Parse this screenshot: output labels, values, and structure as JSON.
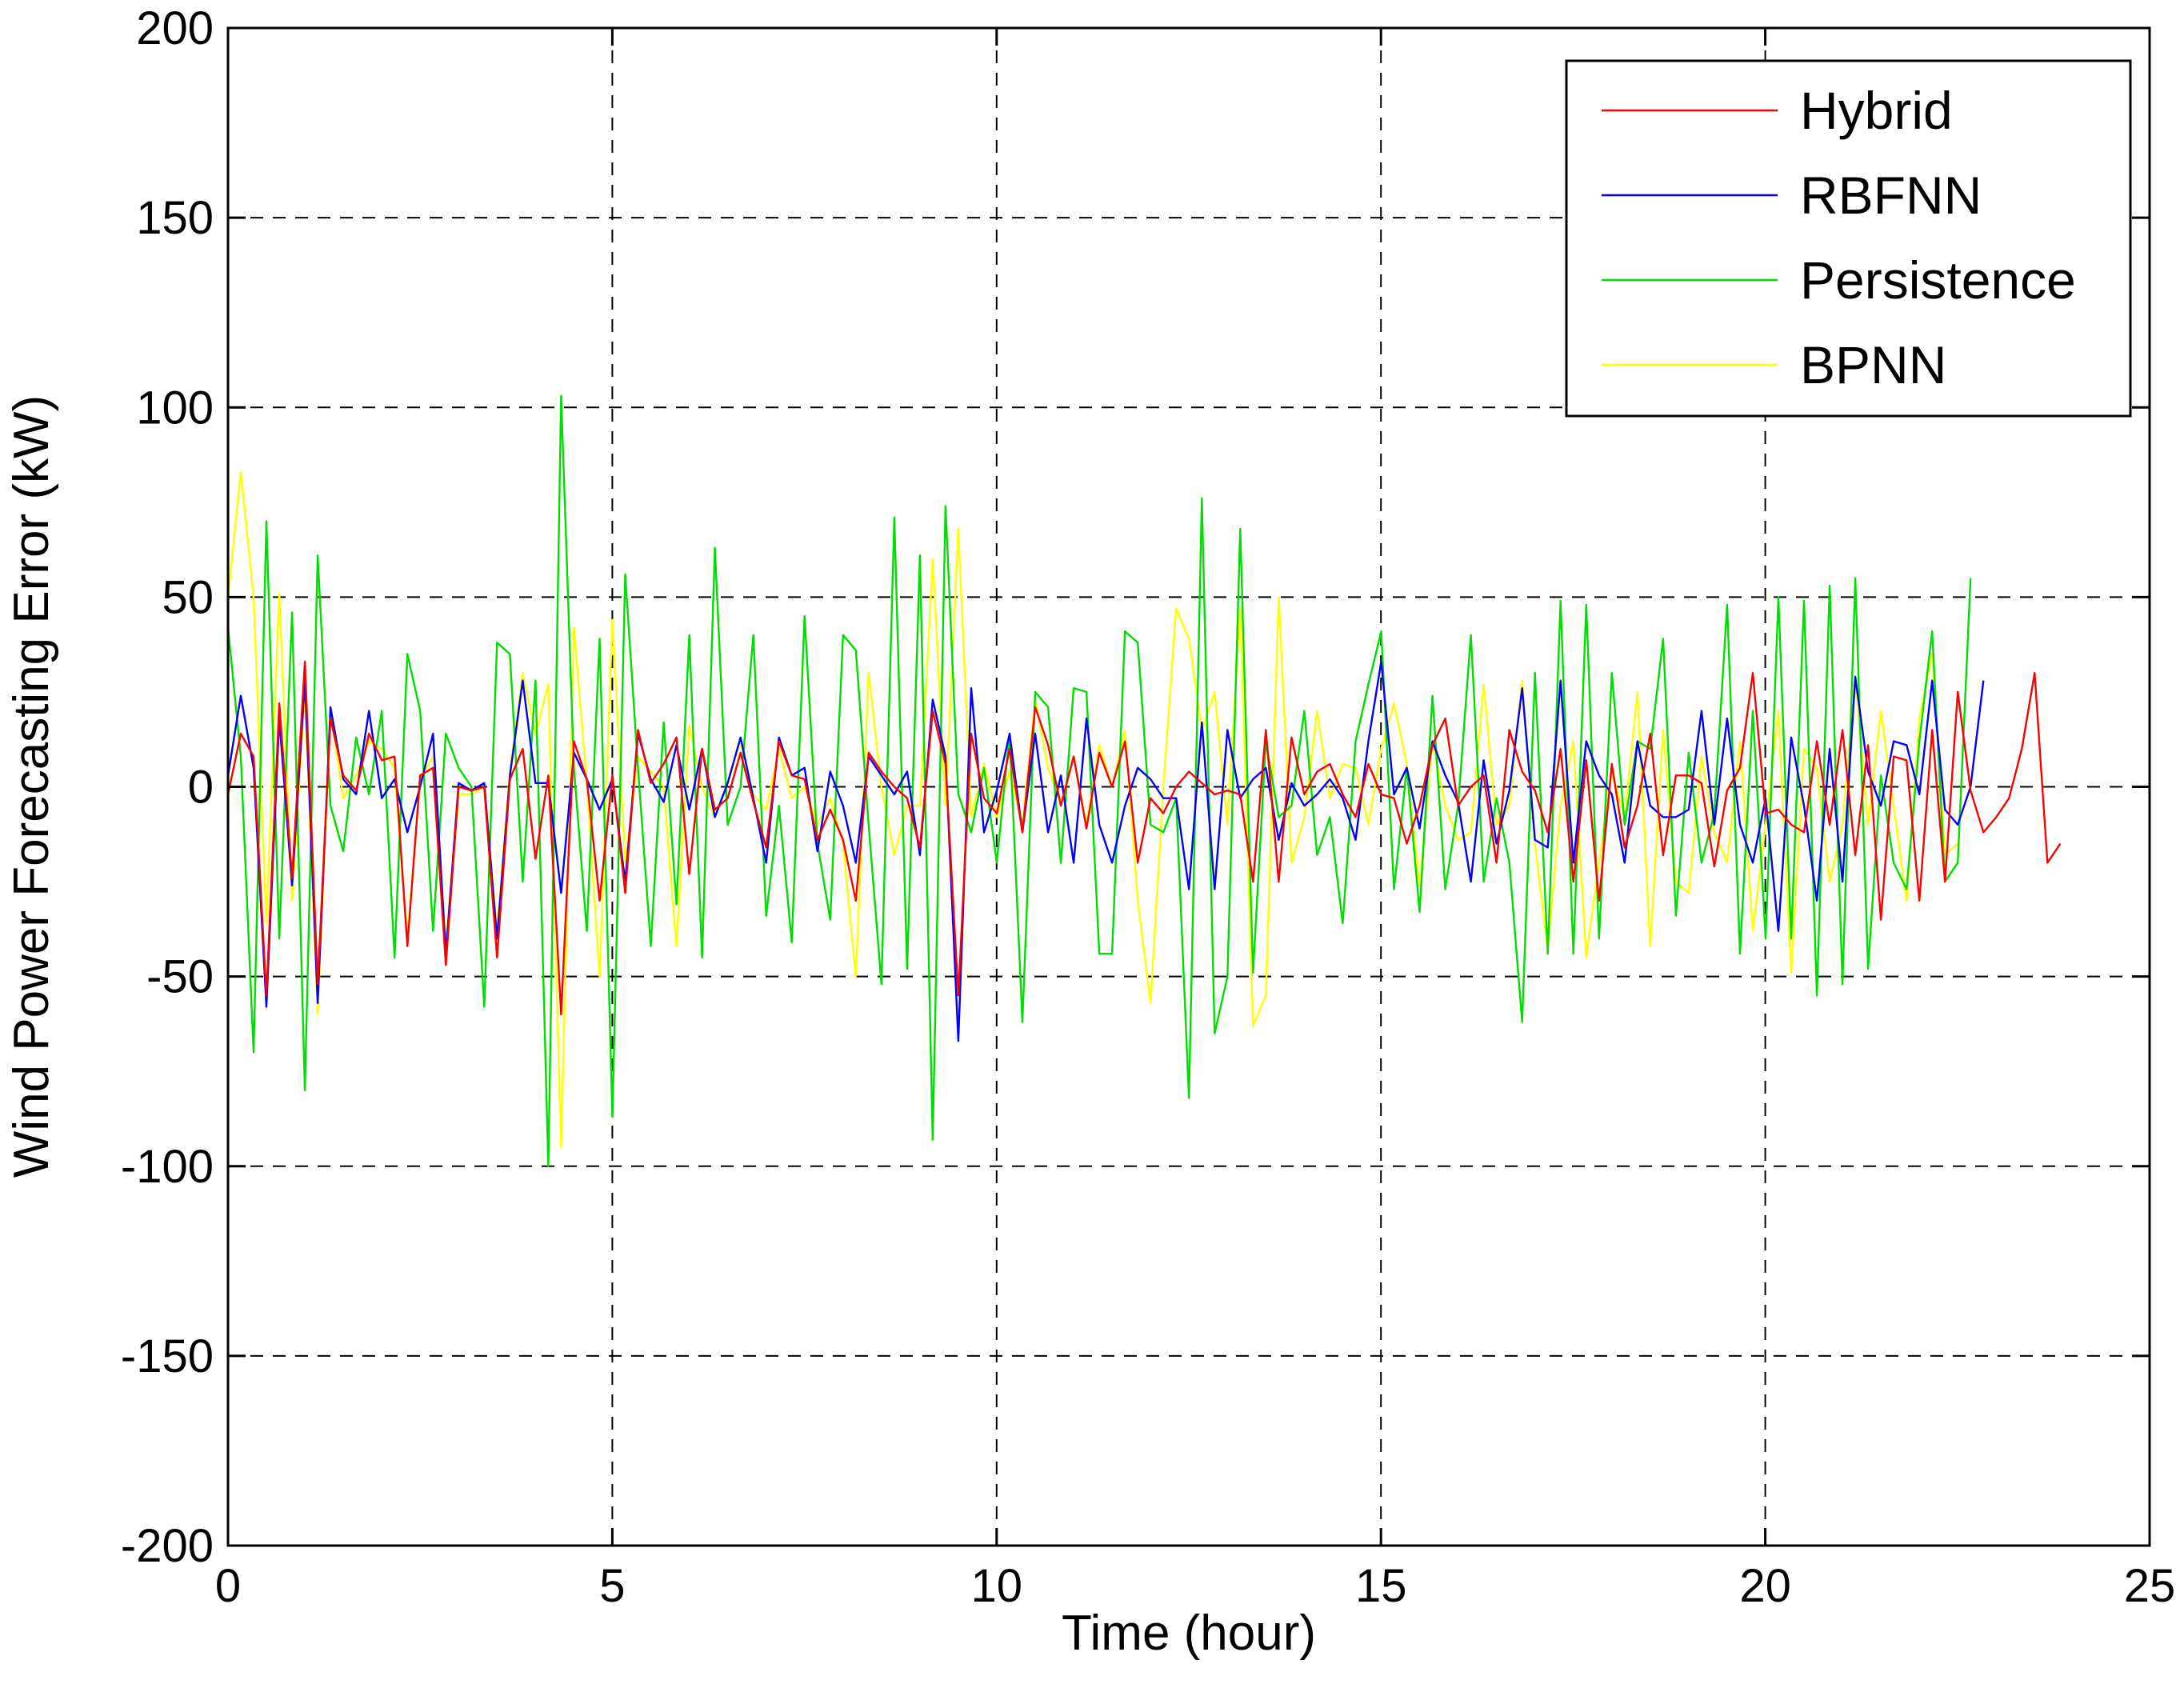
{
  "chart_data": {
    "type": "line",
    "xlabel": "Time (hour)",
    "ylabel": "Wind Power Forecasting Error (kW)",
    "xlim": [
      0,
      25
    ],
    "ylim": [
      -200,
      200
    ],
    "xticks": [
      "0",
      "5",
      "10",
      "15",
      "20",
      "25"
    ],
    "yticks": [
      "200",
      "150",
      "100",
      "50",
      "0",
      "-50",
      "-100",
      "-150",
      "-200"
    ],
    "grid": true,
    "legend_position": "top-right",
    "x_step_hours": 0.1667,
    "series": [
      {
        "name": "Hybrid",
        "color": "#ff0000",
        "values": [
          -2,
          14,
          8,
          -55,
          22,
          -24,
          33,
          -52,
          18,
          3,
          -1,
          14,
          7,
          8,
          -42,
          3,
          5,
          -47,
          0,
          -1,
          0,
          -45,
          2,
          10,
          -19,
          3,
          -60,
          12,
          2,
          -30,
          3,
          -28,
          15,
          1,
          6,
          13,
          -23,
          10,
          -6,
          -3,
          9,
          -4,
          -16,
          12,
          3,
          2,
          -14,
          -6,
          -14,
          -30,
          9,
          4,
          0,
          -3,
          -16,
          20,
          6,
          -55,
          14,
          -3,
          -7,
          10,
          -12,
          21,
          11,
          -5,
          8,
          -11,
          9,
          0,
          12,
          -20,
          -3,
          -7,
          0,
          4,
          1,
          -2,
          -1,
          -2,
          -25,
          15,
          -25,
          13,
          -2,
          4,
          6,
          -2,
          -8,
          6,
          -2,
          -3,
          -15,
          -5,
          11,
          18,
          -5,
          0,
          3,
          -20,
          15,
          4,
          -1,
          -12,
          10,
          -25,
          7,
          -30,
          6,
          -16,
          -5,
          14,
          -18,
          3,
          3,
          1,
          -21,
          -1,
          5,
          30,
          -7,
          -6,
          -10,
          -12,
          12,
          -10,
          15,
          -18,
          11,
          -35,
          8,
          7,
          -30,
          15,
          -25,
          25,
          -1,
          -12,
          -8,
          -3,
          10,
          30,
          -20,
          -15
        ]
      },
      {
        "name": "RBFNN",
        "color": "#0000ff",
        "values": [
          3,
          24,
          5,
          -58,
          18,
          -26,
          28,
          -57,
          21,
          2,
          -2,
          20,
          -3,
          2,
          -12,
          0,
          14,
          -44,
          1,
          -1,
          1,
          -40,
          3,
          28,
          1,
          1,
          -28,
          9,
          2,
          -6,
          2,
          -25,
          14,
          2,
          -4,
          11,
          -6,
          10,
          -8,
          1,
          13,
          -3,
          -20,
          13,
          3,
          5,
          -17,
          4,
          -5,
          -20,
          8,
          3,
          -2,
          4,
          -18,
          23,
          8,
          -67,
          26,
          -12,
          -1,
          14,
          -12,
          14,
          -12,
          3,
          -20,
          18,
          -10,
          -20,
          -5,
          5,
          2,
          -3,
          -3,
          -27,
          17,
          -27,
          15,
          -3,
          2,
          5,
          -14,
          1,
          -5,
          -2,
          2,
          -3,
          -14,
          12,
          33,
          -2,
          5,
          -11,
          12,
          3,
          -4,
          -25,
          7,
          -15,
          -1,
          26,
          -14,
          -16,
          28,
          -20,
          12,
          3,
          -2,
          -20,
          12,
          -5,
          -8,
          -8,
          -6,
          20,
          -10,
          18,
          -10,
          -20,
          -3,
          -38,
          13,
          -5,
          -30,
          10,
          -25,
          29,
          4,
          -5,
          12,
          11,
          -2,
          28,
          -6,
          -10,
          0,
          28
        ]
      },
      {
        "name": "Persistence",
        "color": "#00dd00",
        "values": [
          42,
          8,
          -70,
          70,
          -40,
          46,
          -80,
          61,
          -5,
          -17,
          13,
          -2,
          20,
          -45,
          35,
          20,
          -38,
          14,
          5,
          0,
          -58,
          38,
          35,
          -25,
          28,
          -100,
          103,
          5,
          -38,
          39,
          -87,
          56,
          5,
          -42,
          17,
          -31,
          40,
          -45,
          63,
          -10,
          0,
          40,
          -34,
          -5,
          -41,
          45,
          -15,
          -35,
          40,
          36,
          -10,
          -52,
          71,
          -48,
          61,
          -93,
          74,
          -2,
          -12,
          5,
          -20,
          14,
          -62,
          25,
          21,
          -20,
          26,
          25,
          -44,
          -44,
          41,
          38,
          -10,
          -12,
          -3,
          -82,
          76,
          -65,
          -50,
          68,
          -49,
          12,
          -8,
          -5,
          20,
          -18,
          -8,
          -36,
          12,
          27,
          41,
          -27,
          5,
          -33,
          24,
          -27,
          -5,
          40,
          -25,
          -3,
          -20,
          -62,
          30,
          -44,
          49,
          -44,
          48,
          -40,
          30,
          -10,
          12,
          10,
          39,
          -34,
          9,
          -20,
          -7,
          48,
          -44,
          20,
          -40,
          50,
          -40,
          49,
          -55,
          53,
          -52,
          55,
          -48,
          3,
          -20,
          -27,
          12,
          41,
          -25,
          -20,
          55
        ]
      },
      {
        "name": "BPNN",
        "color": "#ffff00",
        "values": [
          50,
          83,
          50,
          -36,
          51,
          -30,
          25,
          -60,
          20,
          -3,
          3,
          12,
          10,
          5,
          -40,
          2,
          8,
          -42,
          -2,
          -2,
          0,
          -38,
          4,
          30,
          14,
          27,
          -95,
          42,
          1,
          -50,
          44,
          -20,
          8,
          4,
          0,
          -42,
          16,
          0,
          -8,
          1,
          12,
          -2,
          -6,
          10,
          -3,
          0,
          -10,
          -3,
          -15,
          -50,
          30,
          0,
          -18,
          -5,
          -5,
          60,
          -5,
          68,
          -8,
          6,
          -8,
          4,
          -10,
          23,
          5,
          -4,
          8,
          -10,
          11,
          0,
          15,
          -30,
          -57,
          0,
          47,
          39,
          15,
          25,
          -10,
          47,
          -63,
          -55,
          50,
          -20,
          -8,
          20,
          -3,
          6,
          5,
          -10,
          10,
          22,
          6,
          -26,
          12,
          -5,
          -14,
          -12,
          27,
          -10,
          -5,
          28,
          -15,
          -43,
          -5,
          12,
          -45,
          -20,
          4,
          -8,
          25,
          -42,
          15,
          -25,
          -28,
          8,
          -12,
          -20,
          12,
          -38,
          -10,
          20,
          -49,
          10,
          5,
          -25,
          -10,
          29,
          -10,
          20,
          -5,
          -30,
          18,
          35,
          -18,
          -15
        ]
      }
    ]
  }
}
